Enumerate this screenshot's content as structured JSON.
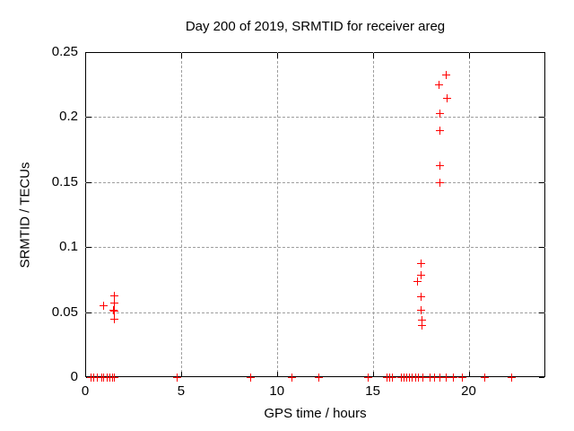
{
  "chart_data": {
    "type": "scatter",
    "title": "Day 200 of 2019, SRMTID for receiver areg",
    "xlabel": "GPS time / hours",
    "ylabel": "SRMTID / TECUs",
    "xlim": [
      0,
      24
    ],
    "ylim": [
      0,
      0.25
    ],
    "xticks": [
      0,
      5,
      10,
      15,
      20
    ],
    "xtick_labels": [
      "0",
      "5",
      "10",
      "15",
      "20"
    ],
    "yticks": [
      0,
      0.05,
      0.1,
      0.15,
      0.2,
      0.25
    ],
    "ytick_labels": [
      "0",
      "0.05",
      "0.1",
      "0.15",
      "0.2",
      "0.25"
    ],
    "grid": true,
    "grid_color": "#9e9e9e",
    "axis_color": "#000000",
    "background_color": "#ffffff",
    "legend": false,
    "marker": "plus",
    "series": [
      {
        "name": "SRMTID",
        "color": "#ff0000",
        "points": [
          [
            0.95,
            0.055
          ],
          [
            1.45,
            0.052
          ],
          [
            1.5,
            0.063
          ],
          [
            1.5,
            0.057
          ],
          [
            1.5,
            0.051
          ],
          [
            1.5,
            0.045
          ],
          [
            17.3,
            0.074
          ],
          [
            17.5,
            0.088
          ],
          [
            17.5,
            0.079
          ],
          [
            17.5,
            0.062
          ],
          [
            17.5,
            0.052
          ],
          [
            17.55,
            0.044
          ],
          [
            17.55,
            0.04
          ],
          [
            18.45,
            0.225
          ],
          [
            18.5,
            0.203
          ],
          [
            18.5,
            0.19
          ],
          [
            18.5,
            0.163
          ],
          [
            18.5,
            0.15
          ],
          [
            18.8,
            0.233
          ],
          [
            18.85,
            0.215
          ],
          [
            0.3,
            0
          ],
          [
            0.4,
            0
          ],
          [
            0.6,
            0
          ],
          [
            0.85,
            0
          ],
          [
            0.95,
            0
          ],
          [
            1.1,
            0
          ],
          [
            1.25,
            0
          ],
          [
            1.4,
            0
          ],
          [
            1.5,
            0
          ],
          [
            4.75,
            0
          ],
          [
            8.6,
            0
          ],
          [
            10.75,
            0
          ],
          [
            12.15,
            0
          ],
          [
            14.75,
            0
          ],
          [
            15.7,
            0
          ],
          [
            15.85,
            0
          ],
          [
            16.0,
            0
          ],
          [
            16.45,
            0
          ],
          [
            16.6,
            0
          ],
          [
            16.75,
            0
          ],
          [
            16.9,
            0
          ],
          [
            17.05,
            0
          ],
          [
            17.2,
            0
          ],
          [
            17.35,
            0
          ],
          [
            17.6,
            0
          ],
          [
            17.95,
            0
          ],
          [
            18.2,
            0
          ],
          [
            18.5,
            0
          ],
          [
            18.8,
            0
          ],
          [
            19.2,
            0
          ],
          [
            19.65,
            0
          ],
          [
            20.8,
            0
          ],
          [
            22.2,
            0
          ]
        ]
      }
    ]
  }
}
